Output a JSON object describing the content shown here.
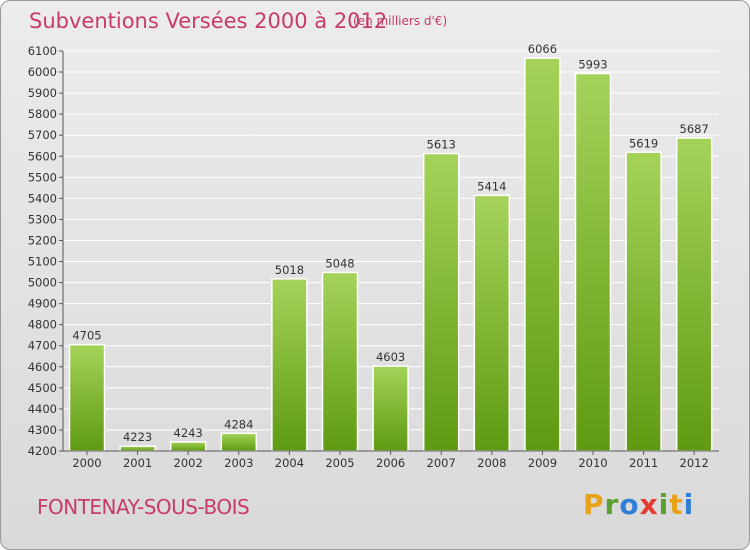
{
  "header": {
    "title": "Subventions Versées 2000 à 2012",
    "subtitle": "(en milliers d'€)"
  },
  "footer": {
    "place": "FONTENAY-SOUS-BOIS",
    "logo": [
      "P",
      "r",
      "o",
      "x",
      "i",
      "t",
      "i"
    ],
    "logo_colors": [
      "#e8a21a",
      "#5aa02c",
      "#2f7fd6",
      "#e23c2f",
      "#5aa02c",
      "#e8a21a",
      "#2f7fd6"
    ]
  },
  "colors": {
    "bar_top": "#a5d35a",
    "bar_bottom": "#5f9a12",
    "grid": "#ffffff",
    "title": "#c83a6a"
  },
  "chart_data": {
    "type": "bar",
    "title": "Subventions Versées 2000 à 2012",
    "subtitle": "(en milliers d'€)",
    "xlabel": "",
    "ylabel": "",
    "categories": [
      "2000",
      "2001",
      "2002",
      "2003",
      "2004",
      "2005",
      "2006",
      "2007",
      "2008",
      "2009",
      "2010",
      "2011",
      "2012"
    ],
    "values": [
      4705,
      4223,
      4243,
      4284,
      5018,
      5048,
      4603,
      5613,
      5414,
      6066,
      5993,
      5619,
      5687
    ],
    "ylim": [
      4200,
      6100
    ],
    "yticks": [
      4200,
      4300,
      4400,
      4500,
      4600,
      4700,
      4800,
      4900,
      5000,
      5100,
      5200,
      5300,
      5400,
      5500,
      5600,
      5700,
      5800,
      5900,
      6000,
      6100
    ],
    "grid": true,
    "legend": "none"
  }
}
